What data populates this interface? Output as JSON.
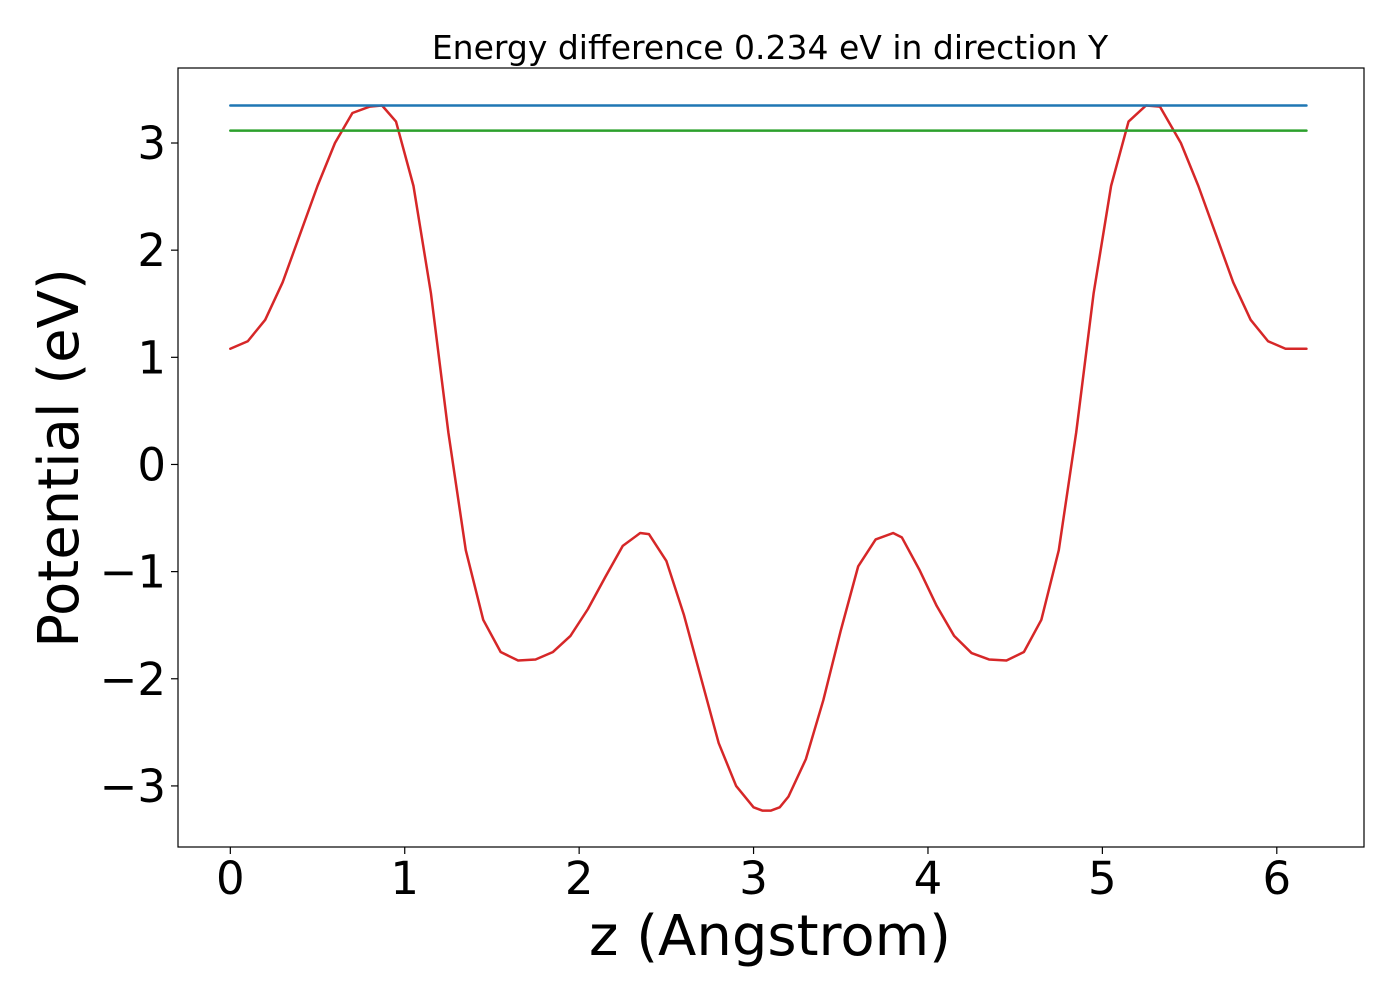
{
  "chart_data": {
    "type": "line",
    "title": "Energy difference 0.234 eV in direction Y",
    "xlabel": "z (Angstrom)",
    "ylabel": "Potential (eV)",
    "xlim": [
      -0.3,
      6.5
    ],
    "ylim": [
      -3.57,
      3.7
    ],
    "xticks": [
      0,
      1,
      2,
      3,
      4,
      5,
      6
    ],
    "xtick_labels": [
      "0",
      "1",
      "2",
      "3",
      "4",
      "5",
      "6"
    ],
    "yticks": [
      -3,
      -2,
      -1,
      0,
      1,
      2,
      3
    ],
    "ytick_labels": [
      "−3",
      "−2",
      "−1",
      "0",
      "1",
      "2",
      "3"
    ],
    "grid": false,
    "series": [
      {
        "color": "#d62728",
        "x": [
          0.0,
          0.1,
          0.2,
          0.3,
          0.4,
          0.5,
          0.6,
          0.7,
          0.8,
          0.87,
          0.95,
          1.05,
          1.15,
          1.25,
          1.35,
          1.45,
          1.55,
          1.65,
          1.75,
          1.85,
          1.95,
          2.05,
          2.15,
          2.25,
          2.35,
          2.4,
          2.5,
          2.6,
          2.7,
          2.8,
          2.9,
          3.0,
          3.05,
          3.1,
          3.15,
          3.2,
          3.3,
          3.4,
          3.5,
          3.6,
          3.7,
          3.8,
          3.85,
          3.95,
          4.05,
          4.15,
          4.25,
          4.35,
          4.45,
          4.55,
          4.65,
          4.75,
          4.85,
          4.95,
          5.05,
          5.15,
          5.25,
          5.33,
          5.45,
          5.55,
          5.65,
          5.75,
          5.85,
          5.95,
          6.05,
          6.15,
          6.17
        ],
        "y": [
          1.08,
          1.15,
          1.35,
          1.7,
          2.15,
          2.6,
          3.0,
          3.28,
          3.34,
          3.35,
          3.2,
          2.6,
          1.6,
          0.3,
          -0.8,
          -1.45,
          -1.75,
          -1.83,
          -1.82,
          -1.75,
          -1.6,
          -1.35,
          -1.05,
          -0.76,
          -0.64,
          -0.65,
          -0.9,
          -1.4,
          -2.0,
          -2.6,
          -3.0,
          -3.2,
          -3.23,
          -3.23,
          -3.2,
          -3.1,
          -2.75,
          -2.2,
          -1.55,
          -0.95,
          -0.7,
          -0.64,
          -0.68,
          -0.98,
          -1.32,
          -1.6,
          -1.76,
          -1.82,
          -1.83,
          -1.75,
          -1.45,
          -0.8,
          0.3,
          1.6,
          2.6,
          3.2,
          3.35,
          3.34,
          3.0,
          2.6,
          2.15,
          1.7,
          1.35,
          1.15,
          1.08,
          1.08,
          1.08
        ]
      },
      {
        "color": "#1f77b4",
        "x": [
          0.0,
          6.17
        ],
        "y": [
          3.35,
          3.35
        ]
      },
      {
        "color": "#2ca02c",
        "x": [
          0.0,
          6.17
        ],
        "y": [
          3.116,
          3.116
        ]
      }
    ]
  }
}
